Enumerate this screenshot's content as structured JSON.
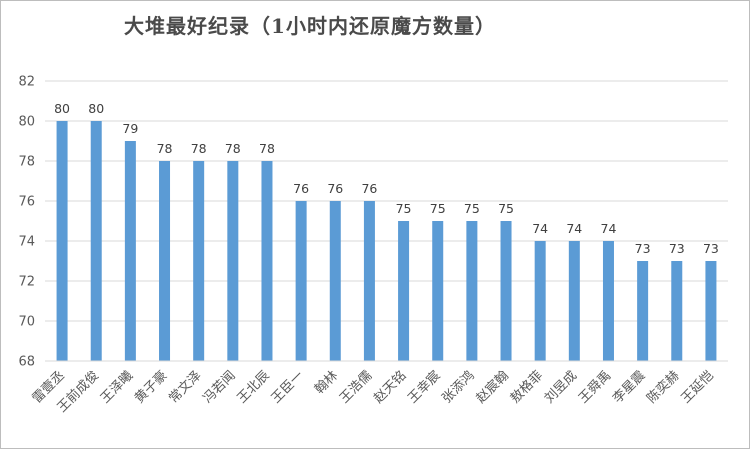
{
  "chart_data": {
    "type": "bar",
    "title": "大堆最好纪录（1小时内还原魔方数量）",
    "xlabel": "",
    "ylabel": "",
    "ylim": [
      68,
      82
    ],
    "yticks": [
      68,
      70,
      72,
      74,
      76,
      78,
      80,
      82
    ],
    "grid": true,
    "legend": "none",
    "bar_color": "#5B9BD5",
    "categories": [
      "雷壹丞",
      "王前成俊",
      "王泽曦",
      "黄子豪",
      "常文泽",
      "冯若闻",
      "王北辰",
      "王臣一",
      "翰林",
      "王浩儒",
      "赵天铭",
      "王幸宸",
      "张添鸿",
      "赵宸翰",
      "敖格菲",
      "刘昱成",
      "王舜禹",
      "李星震",
      "陈奕赫",
      "王延恺"
    ],
    "values": [
      80,
      80,
      79,
      78,
      78,
      78,
      78,
      76,
      76,
      76,
      75,
      75,
      75,
      75,
      74,
      74,
      74,
      73,
      73,
      73
    ]
  }
}
